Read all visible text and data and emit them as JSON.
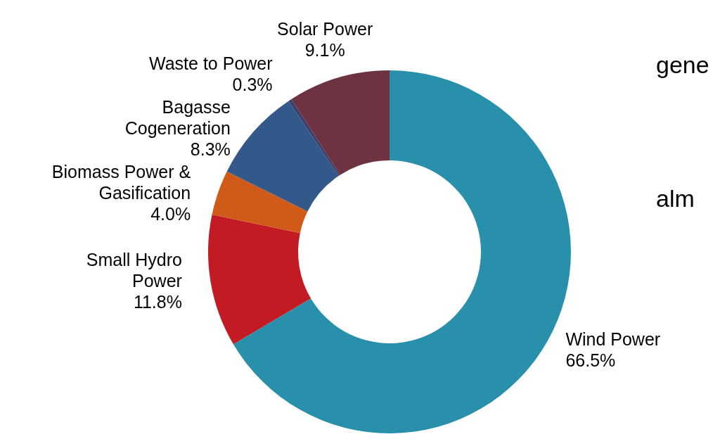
{
  "chart_data": {
    "type": "donut",
    "categories": [
      "Wind Power",
      "Small Hydro Power",
      "Biomass Power & Gasification",
      "Bagasse Cogeneration",
      "Waste to Power",
      "Solar Power"
    ],
    "values": [
      66.5,
      11.8,
      4.0,
      8.3,
      0.3,
      9.1
    ],
    "value_labels": [
      "66.5%",
      "11.8%",
      "4.0%",
      "8.3%",
      "0.3%",
      "9.1%"
    ],
    "colors": [
      "#2890aa",
      "#c21b23",
      "#d05a17",
      "#33588a",
      "#3b3f6b",
      "#6e3340"
    ],
    "annotations": [
      "gene",
      "alm"
    ],
    "legend": false
  }
}
